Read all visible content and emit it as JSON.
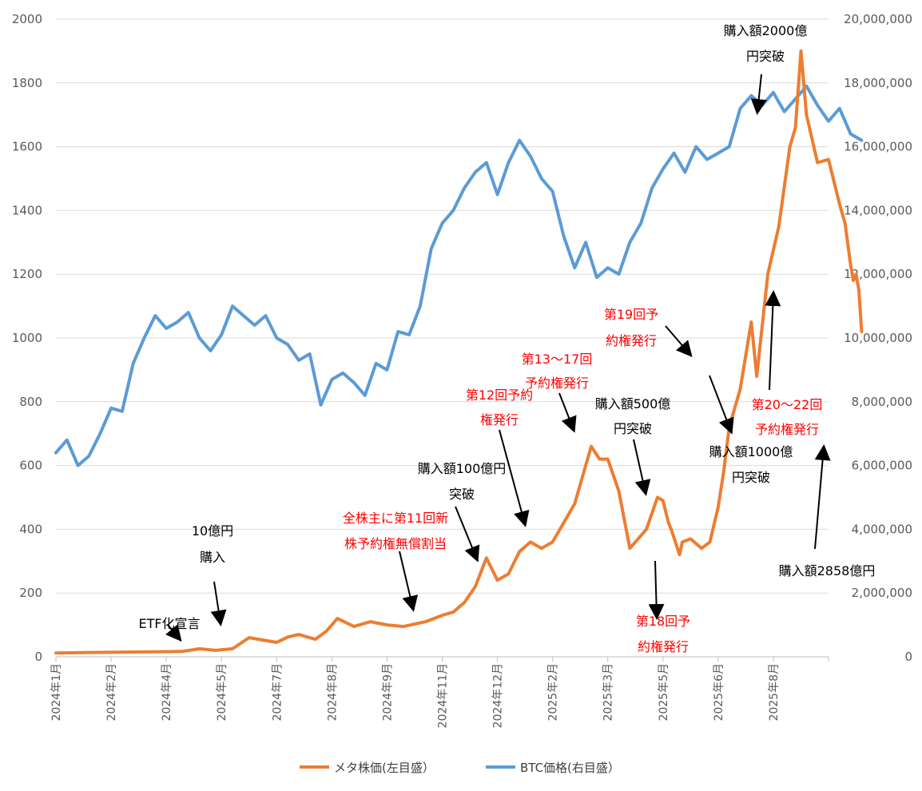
{
  "chart_data": {
    "type": "line",
    "title": "",
    "x_labels": [
      "2024年1月",
      "2024年2月",
      "2024年4月",
      "2024年5月",
      "2024年7月",
      "2024年8月",
      "2024年9月",
      "2024年11月",
      "2024年12月",
      "2025年2月",
      "2025年3月",
      "2025年5月",
      "2025年6月",
      "2025年8月"
    ],
    "left_axis": {
      "min": 0,
      "max": 2000,
      "step": 200,
      "ticks": [
        "0",
        "200",
        "400",
        "600",
        "800",
        "1000",
        "1200",
        "1400",
        "1600",
        "1800",
        "2000"
      ]
    },
    "right_axis": {
      "min": 0,
      "max": 20000000,
      "step": 2000000,
      "ticks": [
        "0",
        "2,000,000",
        "4,000,000",
        "6,000,000",
        "8,000,000",
        "10,000,000",
        "12,000,000",
        "14,000,000",
        "16,000,000",
        "18,000,000",
        "20,000,000"
      ]
    },
    "series": [
      {
        "name": "メタ株価(左目盛）",
        "axis": "left",
        "color": "#ED7D31",
        "x": [
          0,
          0.5,
          1,
          1.5,
          2,
          2.3,
          2.6,
          2.9,
          3.0,
          3.2,
          3.5,
          4.0,
          4.2,
          4.4,
          4.7,
          4.9,
          5.1,
          5.4,
          5.7,
          6.0,
          6.3,
          6.7,
          7.0,
          7.2,
          7.4,
          7.6,
          7.8,
          8.0,
          8.2,
          8.4,
          8.6,
          8.8,
          9.0,
          9.2,
          9.4,
          9.6,
          9.7,
          9.85,
          10.0,
          10.2,
          10.4,
          10.7,
          10.9,
          11.0,
          11.1,
          11.15,
          11.3,
          11.35,
          11.5,
          11.7,
          11.85,
          12.0,
          12.1,
          12.2,
          12.4,
          12.6,
          12.7,
          12.9,
          13.1,
          13.3,
          13.4,
          13.5,
          13.6,
          13.8,
          14.0,
          14.2,
          14.3,
          14.4,
          14.45,
          14.5,
          14.55,
          14.6
        ],
        "values": [
          12,
          13,
          14,
          15,
          16,
          17,
          25,
          20,
          22,
          25,
          60,
          45,
          62,
          70,
          55,
          80,
          120,
          95,
          110,
          100,
          95,
          110,
          130,
          140,
          170,
          220,
          310,
          240,
          260,
          330,
          360,
          340,
          360,
          420,
          480,
          600,
          660,
          620,
          620,
          520,
          340,
          400,
          500,
          490,
          420,
          400,
          320,
          360,
          370,
          340,
          360,
          470,
          580,
          720,
          840,
          1050,
          880,
          1200,
          1350,
          1600,
          1660,
          1900,
          1700,
          1550,
          1560,
          1420,
          1360,
          1230,
          1180,
          1200,
          1150,
          1020
        ]
      },
      {
        "name": "BTC価格(右目盛）",
        "axis": "right",
        "color": "#5B9BD5",
        "x": [
          0,
          0.2,
          0.4,
          0.6,
          0.8,
          1.0,
          1.2,
          1.4,
          1.6,
          1.8,
          2.0,
          2.2,
          2.4,
          2.6,
          2.8,
          3.0,
          3.2,
          3.4,
          3.6,
          3.8,
          4.0,
          4.2,
          4.4,
          4.6,
          4.8,
          5.0,
          5.2,
          5.4,
          5.6,
          5.8,
          6.0,
          6.2,
          6.4,
          6.6,
          6.8,
          7.0,
          7.2,
          7.4,
          7.6,
          7.8,
          8.0,
          8.2,
          8.4,
          8.6,
          8.8,
          9.0,
          9.2,
          9.4,
          9.6,
          9.8,
          10.0,
          10.2,
          10.4,
          10.6,
          10.8,
          11.0,
          11.2,
          11.4,
          11.6,
          11.8,
          12.0,
          12.2,
          12.4,
          12.6,
          12.8,
          13.0,
          13.2,
          13.4,
          13.6,
          13.8,
          14.0,
          14.2,
          14.4,
          14.6
        ],
        "values": [
          6400000,
          6800000,
          6000000,
          6300000,
          7000000,
          7800000,
          7700000,
          9200000,
          10000000,
          10700000,
          10300000,
          10500000,
          10800000,
          10000000,
          9600000,
          10100000,
          11000000,
          10700000,
          10400000,
          10700000,
          10000000,
          9800000,
          9300000,
          9500000,
          7900000,
          8700000,
          8900000,
          8600000,
          8200000,
          9200000,
          9000000,
          10200000,
          10100000,
          11000000,
          12800000,
          13600000,
          14000000,
          14700000,
          15200000,
          15500000,
          14500000,
          15500000,
          16200000,
          15700000,
          15000000,
          14600000,
          13200000,
          12200000,
          13000000,
          11900000,
          12200000,
          12000000,
          13000000,
          13600000,
          14700000,
          15300000,
          15800000,
          15200000,
          16000000,
          15600000,
          15800000,
          16000000,
          17200000,
          17600000,
          17300000,
          17700000,
          17100000,
          17500000,
          17900000,
          17300000,
          16800000,
          17200000,
          16400000,
          16200000
        ]
      }
    ],
    "annotations": [
      {
        "text": "ETF化宣言",
        "color": "#000000"
      },
      {
        "text": "10億円",
        "color": "#000000"
      },
      {
        "text": "購入",
        "color": "#000000"
      },
      {
        "text": "全株主に第11回新",
        "color": "#FF0000"
      },
      {
        "text": "株予約権無償割当",
        "color": "#FF0000"
      },
      {
        "text": "購入額100億円",
        "color": "#000000"
      },
      {
        "text": "突破",
        "color": "#000000"
      },
      {
        "text": "第12回予約",
        "color": "#FF0000"
      },
      {
        "text": "権発行",
        "color": "#FF0000"
      },
      {
        "text": "第13～17回",
        "color": "#FF0000"
      },
      {
        "text": "予約権発行",
        "color": "#FF0000"
      },
      {
        "text": "購入額500億",
        "color": "#000000"
      },
      {
        "text": "円突破",
        "color": "#000000"
      },
      {
        "text": "第18回予",
        "color": "#FF0000"
      },
      {
        "text": "約権発行",
        "color": "#FF0000"
      },
      {
        "text": "第19回予",
        "color": "#FF0000"
      },
      {
        "text": "約権発行",
        "color": "#FF0000"
      },
      {
        "text": "購入額1000億",
        "color": "#000000"
      },
      {
        "text": "円突破",
        "color": "#000000"
      },
      {
        "text": "購入額2000億",
        "color": "#000000"
      },
      {
        "text": "円突破",
        "color": "#000000"
      },
      {
        "text": "第20～22回",
        "color": "#FF0000"
      },
      {
        "text": "予約権発行",
        "color": "#FF0000"
      },
      {
        "text": "購入額2858億円",
        "color": "#000000"
      }
    ],
    "legend": [
      "メタ株価(左目盛）",
      "BTC価格(右目盛）"
    ],
    "legend_position": "bottom"
  }
}
